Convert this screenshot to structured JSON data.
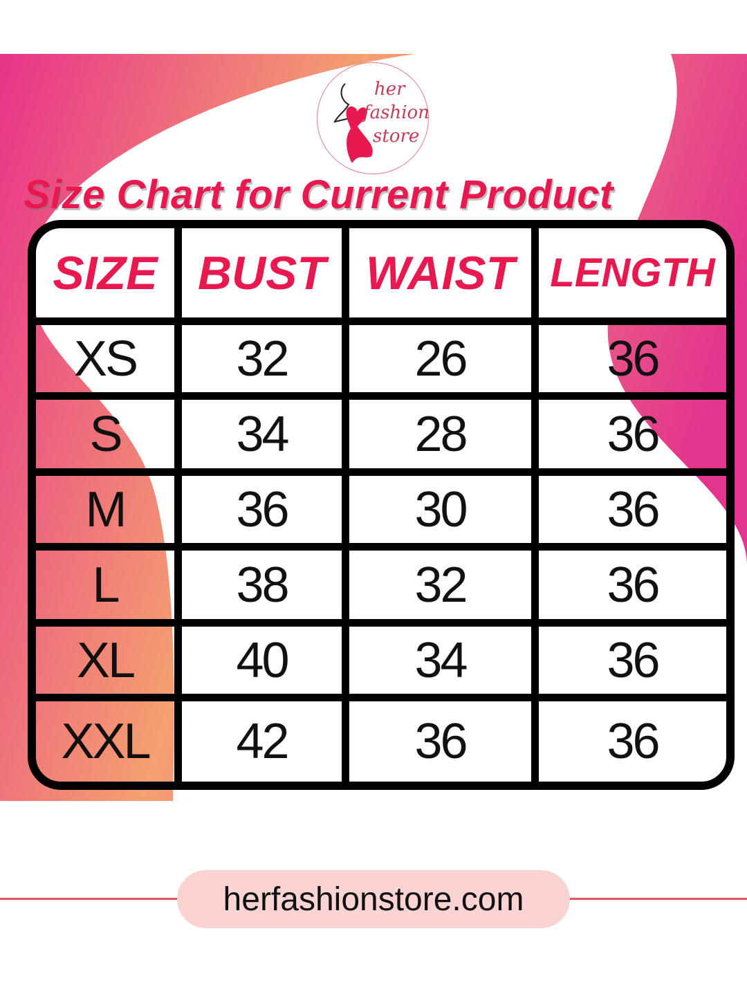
{
  "logo": {
    "line1": "her",
    "line2": "fashion",
    "line3": "store"
  },
  "title": "Size Chart for Current Product",
  "colors": {
    "accent": "#e8194f",
    "pink": "#e8338a",
    "orange": "#f4a070",
    "pill": "#fbd3d3"
  },
  "table": {
    "headers": [
      "SIZE",
      "BUST",
      "WAIST",
      "LENGTH"
    ],
    "rows": [
      [
        "XS",
        "32",
        "26",
        "36"
      ],
      [
        "S",
        "34",
        "28",
        "36"
      ],
      [
        "M",
        "36",
        "30",
        "36"
      ],
      [
        "L",
        "38",
        "32",
        "36"
      ],
      [
        "XL",
        "40",
        "34",
        "36"
      ],
      [
        "XXL",
        "42",
        "36",
        "36"
      ]
    ]
  },
  "footer": {
    "website": "herfashionstore.com"
  }
}
